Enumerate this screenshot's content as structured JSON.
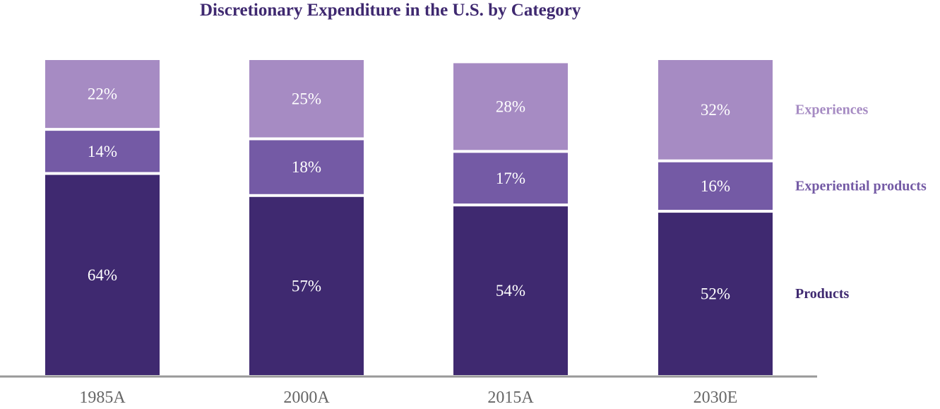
{
  "chart_data": {
    "type": "bar",
    "stacked": true,
    "title": "Discretionary Expenditure in the U.S. by Category",
    "categories": [
      "1985A",
      "2000A",
      "2015A",
      "2030E"
    ],
    "series": [
      {
        "name": "Products",
        "values": [
          64,
          57,
          54,
          52
        ],
        "color": "#3f2970"
      },
      {
        "name": "Experiential products",
        "values": [
          14,
          18,
          17,
          16
        ],
        "color": "#745aa5"
      },
      {
        "name": "Experiences",
        "values": [
          22,
          25,
          28,
          32
        ],
        "color": "#a68bc3"
      }
    ],
    "value_suffix": "%",
    "ylim": [
      0,
      100
    ],
    "legend_position": "right",
    "grid": false
  },
  "colors": {
    "title": "#3f2970",
    "axis": "#999999",
    "segment_label": "#ffffff",
    "tick_label": "#666666"
  }
}
